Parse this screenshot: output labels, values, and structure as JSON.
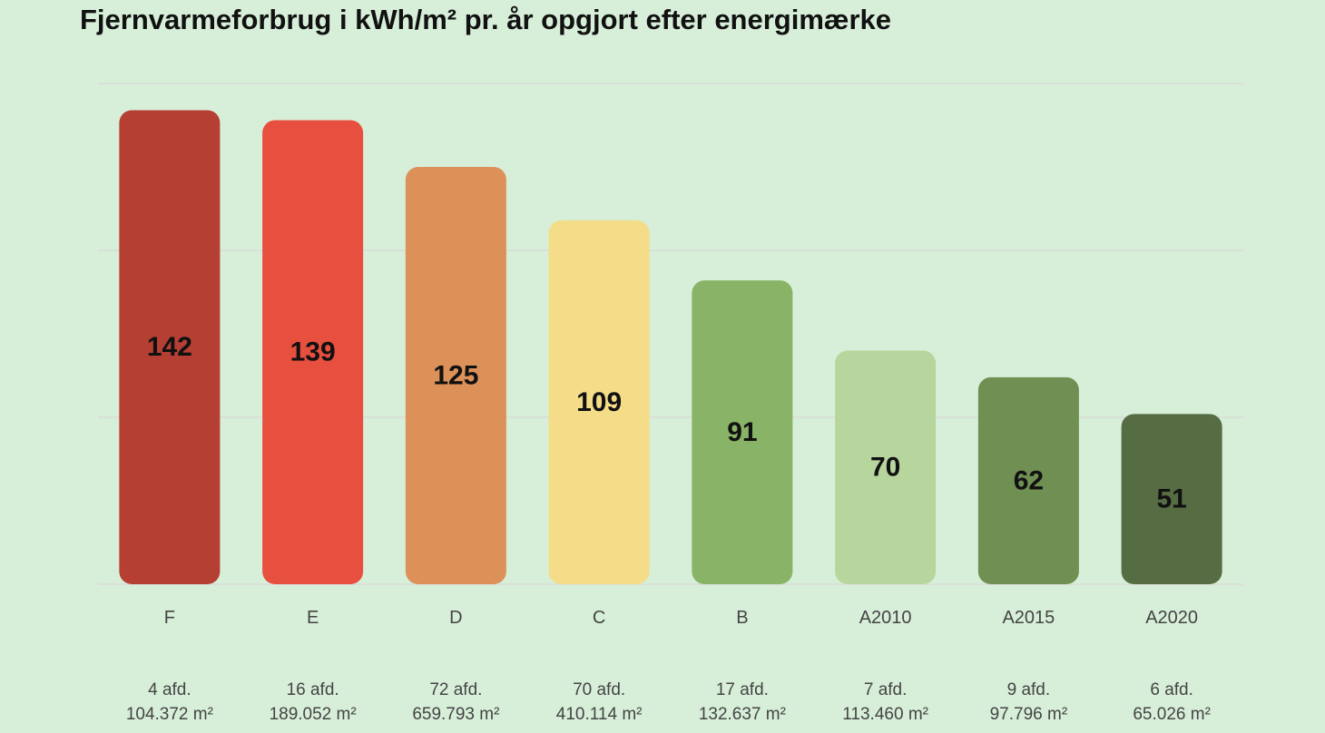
{
  "chart_data": {
    "type": "bar",
    "title": "Fjernvarmeforbrug i kWh/m² pr. år opgjort efter energimærke",
    "xlabel": "",
    "ylabel": "",
    "ylim": [
      0,
      150
    ],
    "grid": true,
    "categories": [
      "F",
      "E",
      "D",
      "C",
      "B",
      "A2010",
      "A2015",
      "A2020"
    ],
    "values": [
      142,
      139,
      125,
      109,
      91,
      70,
      62,
      51
    ],
    "departments": [
      "4 afd.",
      "16 afd.",
      "72 afd.",
      "70 afd.",
      "17 afd.",
      "7 afd.",
      "9 afd.",
      "6 afd."
    ],
    "areas": [
      "104.372 m²",
      "189.052 m²",
      "659.793 m²",
      "410.114 m²",
      "132.637 m²",
      "113.460 m²",
      "97.796 m²",
      "65.026 m²"
    ],
    "colors": [
      "#b53f33",
      "#e74f3e",
      "#dc9159",
      "#f4dc88",
      "#89b366",
      "#b7d69e",
      "#708f52",
      "#566c43"
    ],
    "grid_color": "#d8e0d8",
    "data_labels": [
      "142",
      "139",
      "125",
      "109",
      "91",
      "70",
      "62",
      "51"
    ]
  }
}
